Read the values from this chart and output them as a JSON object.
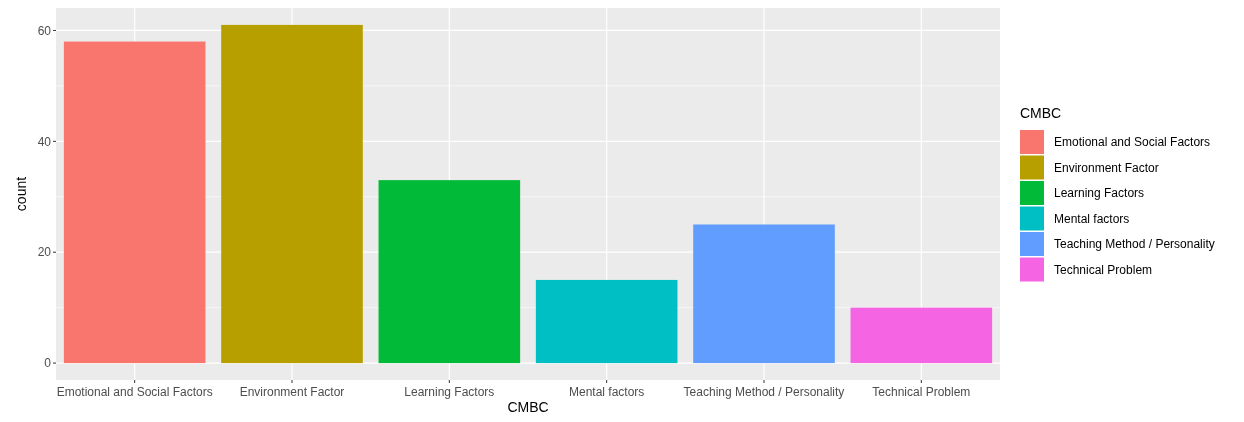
{
  "chart_data": {
    "type": "bar",
    "xlabel": "CMBC",
    "ylabel": "count",
    "legend_title": "CMBC",
    "stacked": true,
    "categories": [
      "Emotional and Social Factors",
      "Environment Factor",
      "Learning Factors",
      "Mental factors",
      "Teaching Method / Personality",
      "Technical Problem"
    ],
    "series": [
      {
        "name": "Emotional and Social Factors",
        "color": "#f8766d",
        "values": [
          58,
          null,
          null,
          null,
          null,
          null
        ]
      },
      {
        "name": "Environment Factor",
        "color": "#b79f00",
        "values": [
          null,
          61,
          null,
          null,
          null,
          null
        ]
      },
      {
        "name": "Learning Factors",
        "color": "#00ba38",
        "values": [
          null,
          null,
          33,
          null,
          null,
          null
        ]
      },
      {
        "name": "Mental factors",
        "color": "#00bfc4",
        "values": [
          null,
          null,
          null,
          15,
          null,
          null
        ]
      },
      {
        "name": "Teaching Method / Personality",
        "color": "#619cff",
        "values": [
          null,
          null,
          null,
          null,
          25,
          null
        ]
      },
      {
        "name": "Technical Problem",
        "color": "#f564e3",
        "values": [
          null,
          null,
          null,
          null,
          null,
          10
        ]
      }
    ],
    "ylim": [
      -3.05,
      64.05
    ],
    "yticks": [
      0,
      20,
      40,
      60
    ],
    "grid": true,
    "legend": "right"
  }
}
